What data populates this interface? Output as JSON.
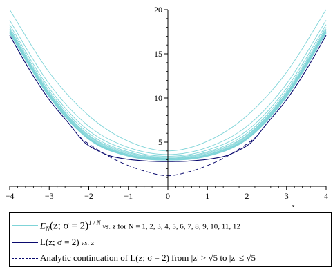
{
  "chart_data": {
    "type": "line",
    "xlabel": "z",
    "ylabel": "",
    "xlim": [
      -4,
      4
    ],
    "ylim": [
      0,
      20
    ],
    "x_ticks": [
      -4,
      -3,
      -2,
      -1,
      0,
      1,
      2,
      3,
      4
    ],
    "y_ticks": [
      5,
      10,
      15,
      20
    ],
    "grid": false,
    "legend_position": "bottom",
    "series": [
      {
        "name": "E_N(z; σ = 2)^{1/N} vs. z for N = 1, 2, 3, 4, 5, 6, 7, 8, 9, 10, 11, 12",
        "style": "cyan-family",
        "curves": [
          {
            "N": 1,
            "x": [
              -4,
              -3,
              -2,
              -1,
              0,
              1,
              2,
              3,
              4
            ],
            "y": [
              20.0,
              12.9,
              8.0,
              5.1,
              4.0,
              5.1,
              8.0,
              12.9,
              20.0
            ]
          },
          {
            "N": 2,
            "x": [
              -4,
              -3,
              -2,
              -1,
              0,
              1,
              2,
              3,
              4
            ],
            "y": [
              18.8,
              11.6,
              6.8,
              4.4,
              3.6,
              4.4,
              6.8,
              11.6,
              18.8
            ]
          },
          {
            "N": 3,
            "x": [
              -4,
              -3,
              -2,
              -1,
              0,
              1,
              2,
              3,
              4
            ],
            "y": [
              18.3,
              11.1,
              6.3,
              4.1,
              3.4,
              4.1,
              6.3,
              11.1,
              18.3
            ]
          },
          {
            "N": 4,
            "x": [
              -4,
              -3,
              -2,
              -1,
              0,
              1,
              2,
              3,
              4
            ],
            "y": [
              18.0,
              10.8,
              6.0,
              3.9,
              3.3,
              3.9,
              6.0,
              10.8,
              18.0
            ]
          },
          {
            "N": 5,
            "x": [
              -4,
              -3,
              -2,
              -1,
              0,
              1,
              2,
              3,
              4
            ],
            "y": [
              17.8,
              10.6,
              5.8,
              3.8,
              3.2,
              3.8,
              5.8,
              10.6,
              17.8
            ]
          },
          {
            "N": 6,
            "x": [
              -4,
              -3,
              -2,
              -1,
              0,
              1,
              2,
              3,
              4
            ],
            "y": [
              17.7,
              10.5,
              5.7,
              3.7,
              3.15,
              3.7,
              5.7,
              10.5,
              17.7
            ]
          },
          {
            "N": 7,
            "x": [
              -4,
              -3,
              -2,
              -1,
              0,
              1,
              2,
              3,
              4
            ],
            "y": [
              17.6,
              10.4,
              5.6,
              3.6,
              3.1,
              3.6,
              5.6,
              10.4,
              17.6
            ]
          },
          {
            "N": 8,
            "x": [
              -4,
              -3,
              -2,
              -1,
              0,
              1,
              2,
              3,
              4
            ],
            "y": [
              17.5,
              10.3,
              5.5,
              3.55,
              3.05,
              3.55,
              5.5,
              10.3,
              17.5
            ]
          },
          {
            "N": 9,
            "x": [
              -4,
              -3,
              -2,
              -1,
              0,
              1,
              2,
              3,
              4
            ],
            "y": [
              17.45,
              10.25,
              5.45,
              3.5,
              3.02,
              3.5,
              5.45,
              10.25,
              17.45
            ]
          },
          {
            "N": 10,
            "x": [
              -4,
              -3,
              -2,
              -1,
              0,
              1,
              2,
              3,
              4
            ],
            "y": [
              17.4,
              10.2,
              5.4,
              3.45,
              3.0,
              3.45,
              5.4,
              10.2,
              17.4
            ]
          },
          {
            "N": 11,
            "x": [
              -4,
              -3,
              -2,
              -1,
              0,
              1,
              2,
              3,
              4
            ],
            "y": [
              17.35,
              10.15,
              5.35,
              3.42,
              2.98,
              3.42,
              5.35,
              10.15,
              17.35
            ]
          },
          {
            "N": 12,
            "x": [
              -4,
              -3,
              -2,
              -1,
              0,
              1,
              2,
              3,
              4
            ],
            "y": [
              17.3,
              10.1,
              5.3,
              3.4,
              2.96,
              3.4,
              5.3,
              10.1,
              17.3
            ]
          }
        ]
      },
      {
        "name": "L(z; σ = 2) vs. z",
        "style": "solid-navy",
        "x": [
          -4,
          -3.5,
          -3,
          -2.5,
          -2.236,
          -2,
          -1.5,
          -1,
          -0.5,
          0,
          0.5,
          1,
          1.5,
          2,
          2.236,
          2.5,
          3,
          3.5,
          4
        ],
        "y": [
          17.1,
          13.2,
          9.8,
          7.1,
          5.6,
          4.6,
          3.5,
          3.05,
          2.85,
          2.8,
          2.85,
          3.05,
          3.5,
          4.6,
          5.6,
          7.1,
          9.8,
          13.2,
          17.1
        ]
      },
      {
        "name": "Analytic continuation of L(z; σ = 2) from |z| > √5 to |z| ≤ √5",
        "style": "dashed-navy",
        "x": [
          -2.236,
          -2,
          -1.5,
          -1,
          -0.5,
          0,
          0.5,
          1,
          1.5,
          2,
          2.236
        ],
        "y": [
          5.6,
          4.8,
          3.4,
          2.35,
          1.6,
          1.2,
          1.6,
          2.35,
          3.4,
          4.8,
          5.6
        ]
      }
    ]
  },
  "colors": {
    "cyan": "#7fd4d8",
    "navy": "#0a0a6e",
    "axis": "#000000"
  },
  "legend": {
    "entries": [
      {
        "prefix": "E",
        "sub": "N",
        "args": "(z; σ = 2)",
        "sup": "1 / N",
        "suffix_italic": " vs. z",
        "suffix_roman": " for N = 1, 2, 3, 4, 5, 6, 7, 8, 9, 10, 11, 12"
      },
      {
        "text_main": "L(z; σ = 2)",
        "suffix_italic": " vs. z"
      },
      {
        "text_main": "Analytic continuation of L(z; σ = 2) from |z| > √5  to |z| ≤ √5"
      }
    ]
  }
}
